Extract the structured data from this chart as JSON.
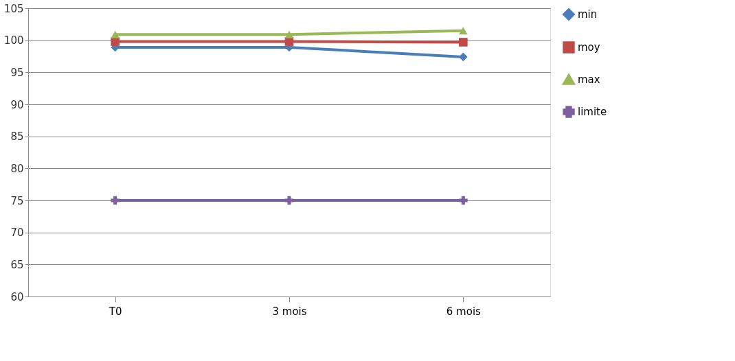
{
  "chart_data": {
    "type": "line",
    "categories": [
      "T0",
      "3 mois",
      "6 mois"
    ],
    "series": [
      {
        "name": "min",
        "color": "#4a7ebb",
        "marker": "diamond",
        "values": [
          98.9,
          98.9,
          97.4
        ]
      },
      {
        "name": "moy",
        "color": "#be4b48",
        "marker": "square",
        "values": [
          99.8,
          99.8,
          99.7
        ]
      },
      {
        "name": "max",
        "color": "#98b954",
        "marker": "triangle",
        "values": [
          100.9,
          100.9,
          101.5
        ]
      },
      {
        "name": "limite",
        "color": "#7d60a0",
        "marker": "cross",
        "values": [
          75,
          75,
          75
        ]
      }
    ],
    "ylim": [
      60,
      105
    ],
    "yticks": [
      60,
      65,
      70,
      75,
      80,
      85,
      90,
      95,
      100,
      105
    ],
    "grid": "y",
    "legend": "right"
  }
}
